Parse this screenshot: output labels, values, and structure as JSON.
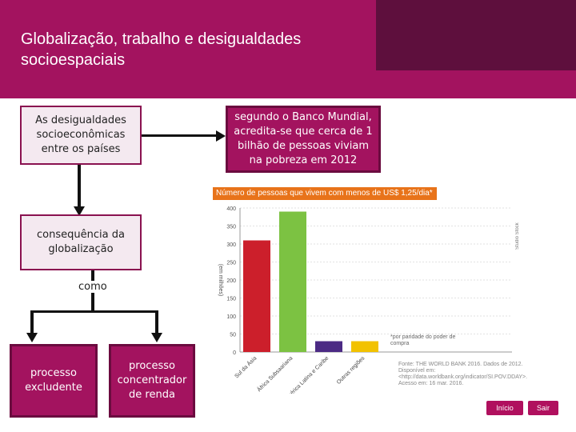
{
  "header": {
    "title_line1": "Globalização, trabalho e desigualdades",
    "title_line2": "socioespaciais"
  },
  "diagram": {
    "box_top_left": [
      "As desigualdades",
      "socioeconômicas",
      "entre os países"
    ],
    "box_top_right": [
      "segundo o Banco Mundial,",
      "acredita-se que cerca de 1",
      "bilhão de pessoas viviam",
      "na pobreza em 2012"
    ],
    "box_middle_line1": "consequência da",
    "box_middle_line2": "globalização",
    "connector_label": "como",
    "box_bottom_left": [
      "processo",
      "excludente"
    ],
    "box_bottom_right": [
      "processo",
      "concentrador",
      "de renda"
    ]
  },
  "chart_data": {
    "type": "bar",
    "title": "Número de pessoas que vivem com menos de US$ 1,25/dia*",
    "ylabel": "(em milhões)",
    "ylim": [
      0,
      400
    ],
    "yticks": [
      "0",
      "50",
      "100",
      "150",
      "200",
      "250",
      "300",
      "350",
      "400"
    ],
    "categories": [
      "Sul da Ásia",
      "África Subsaariana",
      "América Latina e Caribe",
      "Outras regiões"
    ],
    "values": [
      310,
      390,
      30,
      30
    ],
    "colors": [
      "#cc1f2b",
      "#7cc242",
      "#4b2a84",
      "#f2c200"
    ],
    "note": "*por paridade do poder de compra",
    "source": "Fonte: THE WORLD BANK 2016. Dados de 2012. Disponível em: <http://data.worldbank.org/indicator/SI.POV.DDAY>. Acesso em: 16 mar. 2016.",
    "side_credit": "Studio Stock"
  },
  "nav": {
    "inicio": "Início",
    "sair": "Sair"
  },
  "colors": {
    "banner": "#a3135f",
    "banner_dark": "#5e0f3d",
    "chart_title_bg": "#e8731a"
  }
}
